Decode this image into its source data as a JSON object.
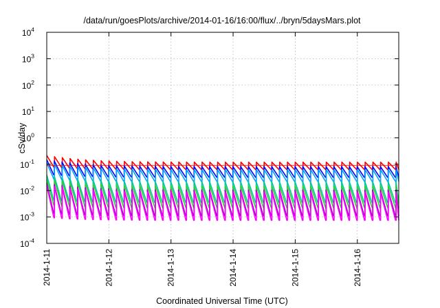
{
  "chart_data": {
    "type": "line",
    "title": "/data/run/goesPlots/archive/2014-01-16/16:00/flux/../bryn/5daysMars.plot",
    "xlabel": "Coordinated Universal Time (UTC)",
    "ylabel": "cSv/day",
    "yscale": "log",
    "ylim": [
      0.0001,
      10000
    ],
    "xlim": [
      "2014-01-11",
      "2014-01-16T16:00"
    ],
    "grid": true,
    "legend": "none",
    "y_ticks": [
      {
        "base": "10",
        "exp": "4"
      },
      {
        "base": "10",
        "exp": "3"
      },
      {
        "base": "10",
        "exp": "2"
      },
      {
        "base": "10",
        "exp": "1"
      },
      {
        "base": "10",
        "exp": "0"
      },
      {
        "base": "10",
        "exp": "-1"
      },
      {
        "base": "10",
        "exp": "-2"
      },
      {
        "base": "10",
        "exp": "-3"
      },
      {
        "base": "10",
        "exp": "-4"
      }
    ],
    "x_ticks": [
      "2014-1-11",
      "2014-1-12",
      "2014-1-13",
      "2014-1-14",
      "2014-1-15",
      "2014-1-16"
    ],
    "orbit_period_hours": 3,
    "series": [
      {
        "color": "#ff0000",
        "peak": 0.12,
        "trough": 0.062
      },
      {
        "color": "#0000ff",
        "peak": 0.082,
        "trough": 0.032
      },
      {
        "color": "#00a0ff",
        "peak": 0.062,
        "trough": 0.022
      },
      {
        "color": "#00c8a0",
        "peak": 0.022,
        "trough": 0.0035
      },
      {
        "color": "#32cd32",
        "peak": 0.015,
        "trough": 0.0022
      },
      {
        "color": "#a000c8",
        "peak": 0.0105,
        "trough": 0.0011
      },
      {
        "color": "#ff00ff",
        "peak": 0.0085,
        "trough": 0.00075
      }
    ],
    "reference_line": {
      "color": "#ff0000",
      "value": 0.09
    }
  }
}
